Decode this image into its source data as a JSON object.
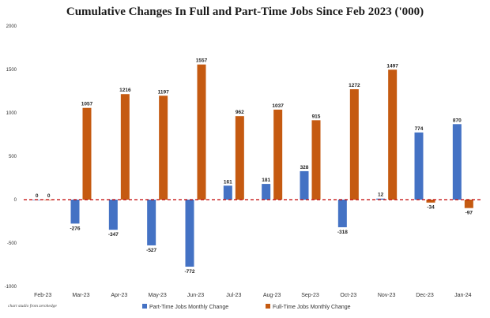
{
  "chart_data": {
    "type": "bar",
    "title": "Cumulative Changes In Full and Part-Time Jobs Since Feb 2023 ('000)",
    "categories": [
      "Feb-23",
      "Mar-23",
      "Apr-23",
      "May-23",
      "Jun-23",
      "Jul-23",
      "Aug-23",
      "Sep-23",
      "Oct-23",
      "Nov-23",
      "Dec-23",
      "Jan-24"
    ],
    "series": [
      {
        "name": "Part-Time Jobs Monthly Change",
        "color": "#4472C4",
        "values": [
          0,
          -276,
          -347,
          -527,
          -772,
          161,
          181,
          328,
          -318,
          12,
          774,
          870
        ]
      },
      {
        "name": "Full-Time Jobs Monthly Change",
        "color": "#C55A11",
        "values": [
          0,
          1057,
          1216,
          1197,
          1557,
          962,
          1037,
          915,
          1272,
          1497,
          -34,
          -97
        ]
      }
    ],
    "ylim": [
      -1000,
      2000
    ],
    "yticks": [
      -1000,
      -500,
      0,
      500,
      1000,
      1500,
      2000
    ],
    "ytick_labels": [
      "-1000",
      "-500",
      "0",
      "500",
      "1000",
      "1500",
      "2000"
    ],
    "grid": false,
    "zero_line": {
      "color": "#C00000",
      "style": "dashed"
    },
    "legend": "bottom",
    "source": "chart studio from zerohedge"
  }
}
